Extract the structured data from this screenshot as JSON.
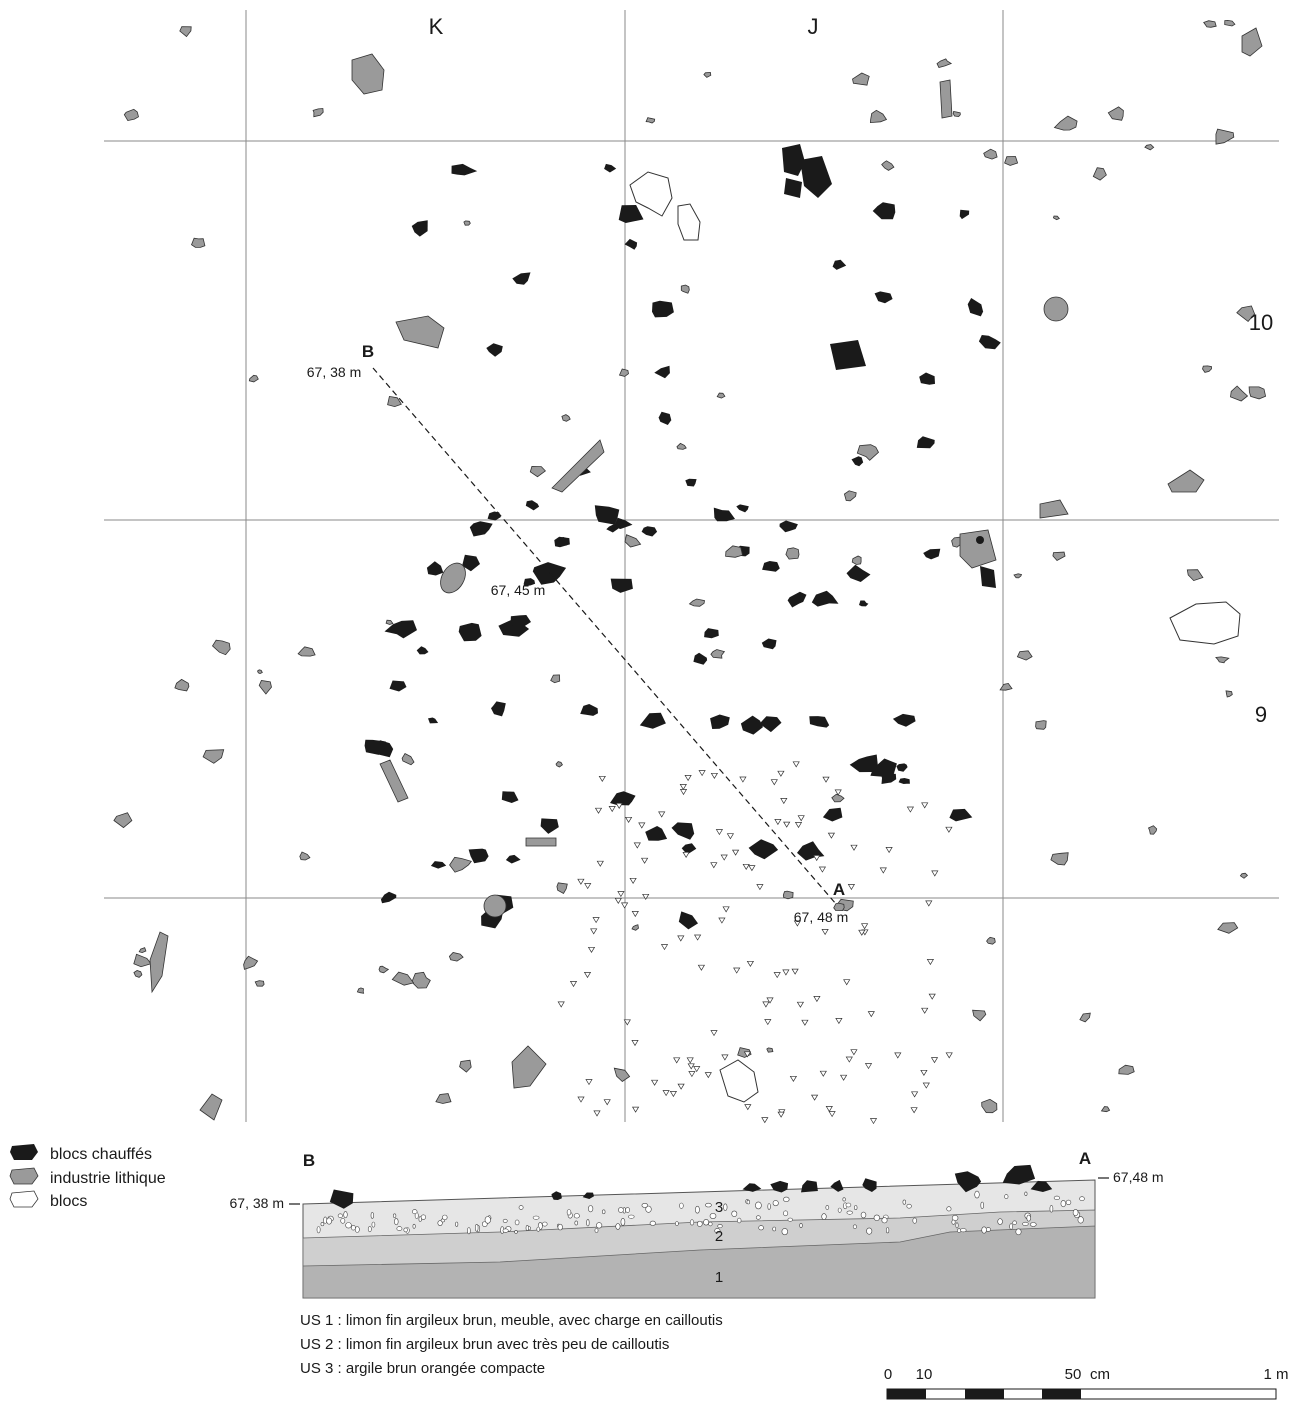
{
  "plan": {
    "columns": [
      "K",
      "J"
    ],
    "rows": [
      "10",
      "9"
    ],
    "point_b": {
      "letter": "B",
      "altitude": "67, 38 m"
    },
    "point_mid": {
      "altitude": "67, 45 m"
    },
    "point_a": {
      "letter": "A",
      "altitude": "67, 48 m"
    }
  },
  "legend": {
    "items": [
      {
        "label": "blocs chauffés",
        "color": "#1a1a1a"
      },
      {
        "label": "industrie lithique",
        "color": "#9a9a9a"
      },
      {
        "label": "blocs",
        "color": "#ffffff"
      }
    ]
  },
  "section": {
    "left_letter": "B",
    "right_letter": "A",
    "left_altitude": "67, 38 m",
    "right_altitude": "67,48 m",
    "layers": [
      {
        "id": "3",
        "color": "#e6e6e6"
      },
      {
        "id": "2",
        "color": "#cfcfcf"
      },
      {
        "id": "1",
        "color": "#b3b3b3"
      }
    ]
  },
  "descriptions": [
    "US 1 : limon fin argileux brun, meuble, avec charge en cailloutis",
    "US 2 : limon fin argileux brun avec très peu de cailloutis",
    "US 3 : argile brun orangée compacte"
  ],
  "scale": {
    "ticks": [
      "0",
      "10",
      "50",
      "1 m"
    ],
    "unit": "cm"
  }
}
